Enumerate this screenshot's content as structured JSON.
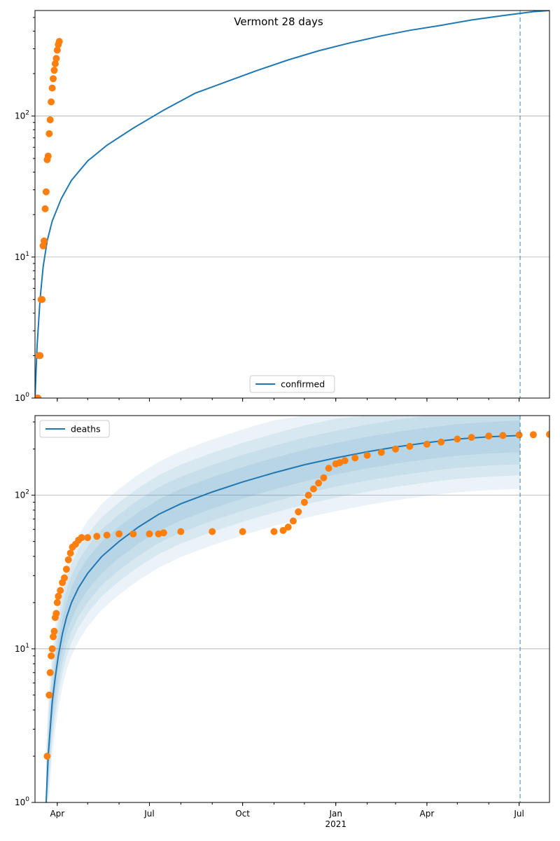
{
  "figure_title": "Vermont 28 days",
  "colors": {
    "model": "#1f77b4",
    "observed": "#ff7f0e",
    "grid": "#b0b0b0",
    "band": "#1f77b4"
  },
  "chart_data": [
    {
      "type": "scatter",
      "panel": "top",
      "title": "Vermont 28 days",
      "yscale": "log",
      "ylim": [
        1,
        560
      ],
      "xlim": [
        "2020-03-10",
        "2021-07-31"
      ],
      "x_ticks": [
        {
          "date": "2020-04-01",
          "label": "Apr",
          "sub": ""
        },
        {
          "date": "2020-07-01",
          "label": "Jul",
          "sub": ""
        },
        {
          "date": "2020-10-01",
          "label": "Oct",
          "sub": ""
        },
        {
          "date": "2021-01-01",
          "label": "Jan",
          "sub": "2021"
        },
        {
          "date": "2021-04-01",
          "label": "Apr",
          "sub": ""
        },
        {
          "date": "2021-07-01",
          "label": "Jul",
          "sub": ""
        }
      ],
      "y_ticks": [
        {
          "value": 1,
          "base": "10",
          "exp": "0"
        },
        {
          "value": 10,
          "base": "10",
          "exp": "1"
        },
        {
          "value": 100,
          "base": "10",
          "exp": "2"
        }
      ],
      "grid": "y-major",
      "legend": {
        "position": "lower center",
        "entries": [
          "confirmed"
        ]
      },
      "vline_date": "2021-07-02",
      "series": [
        {
          "name": "confirmed",
          "kind": "line",
          "x": [
            "2020-03-10",
            "2020-03-12",
            "2020-03-15",
            "2020-03-18",
            "2020-03-22",
            "2020-03-27",
            "2020-04-05",
            "2020-04-15",
            "2020-05-01",
            "2020-05-20",
            "2020-06-15",
            "2020-07-15",
            "2020-08-15",
            "2020-09-15",
            "2020-10-15",
            "2020-11-15",
            "2020-12-15",
            "2021-01-15",
            "2021-02-15",
            "2021-03-15",
            "2021-04-15",
            "2021-05-15",
            "2021-06-15",
            "2021-07-15",
            "2021-07-31"
          ],
          "y": [
            1,
            2.3,
            5,
            8.5,
            13,
            18,
            26,
            35,
            48,
            62,
            82,
            110,
            145,
            175,
            210,
            250,
            290,
            330,
            370,
            405,
            440,
            480,
            515,
            550,
            560
          ]
        },
        {
          "name": "",
          "kind": "points",
          "x": [
            "2020-03-12",
            "2020-03-13",
            "2020-03-14",
            "2020-03-15",
            "2020-03-16",
            "2020-03-17",
            "2020-03-18",
            "2020-03-19",
            "2020-03-20",
            "2020-03-21",
            "2020-03-22",
            "2020-03-23",
            "2020-03-24",
            "2020-03-25",
            "2020-03-26",
            "2020-03-27",
            "2020-03-28",
            "2020-03-29",
            "2020-03-30",
            "2020-03-31",
            "2020-04-01",
            "2020-04-02",
            "2020-04-03"
          ],
          "y": [
            1,
            1,
            2,
            2,
            5,
            5,
            12,
            13,
            22,
            29,
            49,
            52,
            75,
            94,
            126,
            158,
            184,
            211,
            235,
            256,
            293,
            321,
            338
          ]
        }
      ]
    },
    {
      "type": "scatter",
      "panel": "bottom",
      "title": "",
      "yscale": "log",
      "ylim": [
        1,
        330
      ],
      "xlim": [
        "2020-03-10",
        "2021-07-31"
      ],
      "x_ticks": [
        {
          "date": "2020-04-01",
          "label": "Apr",
          "sub": ""
        },
        {
          "date": "2020-07-01",
          "label": "Jul",
          "sub": ""
        },
        {
          "date": "2020-10-01",
          "label": "Oct",
          "sub": ""
        },
        {
          "date": "2021-01-01",
          "label": "Jan",
          "sub": "2021"
        },
        {
          "date": "2021-04-01",
          "label": "Apr",
          "sub": ""
        },
        {
          "date": "2021-07-01",
          "label": "Jul",
          "sub": ""
        }
      ],
      "y_ticks": [
        {
          "value": 1,
          "base": "10",
          "exp": "0"
        },
        {
          "value": 10,
          "base": "10",
          "exp": "1"
        },
        {
          "value": 100,
          "base": "10",
          "exp": "2"
        }
      ],
      "grid": "y-major",
      "legend": {
        "position": "upper left",
        "entries": [
          "deaths"
        ]
      },
      "vline_date": "2021-07-02",
      "series": [
        {
          "name": "deaths",
          "kind": "line",
          "x": [
            "2020-03-21",
            "2020-03-23",
            "2020-03-25",
            "2020-03-27",
            "2020-03-30",
            "2020-04-02",
            "2020-04-06",
            "2020-04-10",
            "2020-04-15",
            "2020-04-22",
            "2020-05-01",
            "2020-05-15",
            "2020-06-01",
            "2020-06-20",
            "2020-07-10",
            "2020-08-01",
            "2020-09-01",
            "2020-10-01",
            "2020-11-01",
            "2020-12-01",
            "2021-01-01",
            "2021-02-01",
            "2021-03-01",
            "2021-04-01",
            "2021-05-01",
            "2021-06-01",
            "2021-07-02"
          ],
          "y": [
            1,
            2,
            3,
            4.5,
            6.5,
            9,
            12.5,
            16,
            20,
            25,
            31,
            40,
            50,
            62,
            75,
            88,
            105,
            122,
            140,
            158,
            175,
            192,
            206,
            220,
            232,
            240,
            245
          ]
        },
        {
          "name": "",
          "kind": "points",
          "x": [
            "2020-03-22",
            "2020-03-24",
            "2020-03-25",
            "2020-03-26",
            "2020-03-27",
            "2020-03-28",
            "2020-03-29",
            "2020-03-30",
            "2020-03-31",
            "2020-04-01",
            "2020-04-02",
            "2020-04-04",
            "2020-04-06",
            "2020-04-08",
            "2020-04-10",
            "2020-04-12",
            "2020-04-14",
            "2020-04-16",
            "2020-04-19",
            "2020-04-22",
            "2020-04-25",
            "2020-05-01",
            "2020-05-10",
            "2020-05-20",
            "2020-06-01",
            "2020-06-15",
            "2020-07-01",
            "2020-07-10",
            "2020-07-15",
            "2020-08-01",
            "2020-09-01",
            "2020-10-01",
            "2020-11-01",
            "2020-11-10",
            "2020-11-15",
            "2020-11-20",
            "2020-11-25",
            "2020-12-01",
            "2020-12-05",
            "2020-12-10",
            "2020-12-15",
            "2020-12-20",
            "2020-12-25",
            "2021-01-01",
            "2021-01-05",
            "2021-01-10",
            "2021-01-20",
            "2021-02-01",
            "2021-02-15",
            "2021-03-01",
            "2021-03-15",
            "2021-04-01",
            "2021-04-15",
            "2021-05-01",
            "2021-05-15",
            "2021-06-01",
            "2021-06-15",
            "2021-07-01",
            "2021-07-15",
            "2021-07-31"
          ],
          "y": [
            2,
            5,
            7,
            9,
            10,
            12,
            13,
            16,
            17,
            20,
            22,
            24,
            27,
            29,
            33,
            38,
            42,
            46,
            48,
            51,
            53,
            53,
            54,
            55,
            56,
            56,
            56,
            56,
            57,
            58,
            58,
            58,
            58,
            59,
            62,
            68,
            78,
            90,
            100,
            110,
            120,
            130,
            150,
            160,
            163,
            168,
            175,
            182,
            190,
            200,
            208,
            215,
            222,
            232,
            238,
            243,
            245,
            247,
            248,
            249
          ]
        }
      ]
    }
  ]
}
